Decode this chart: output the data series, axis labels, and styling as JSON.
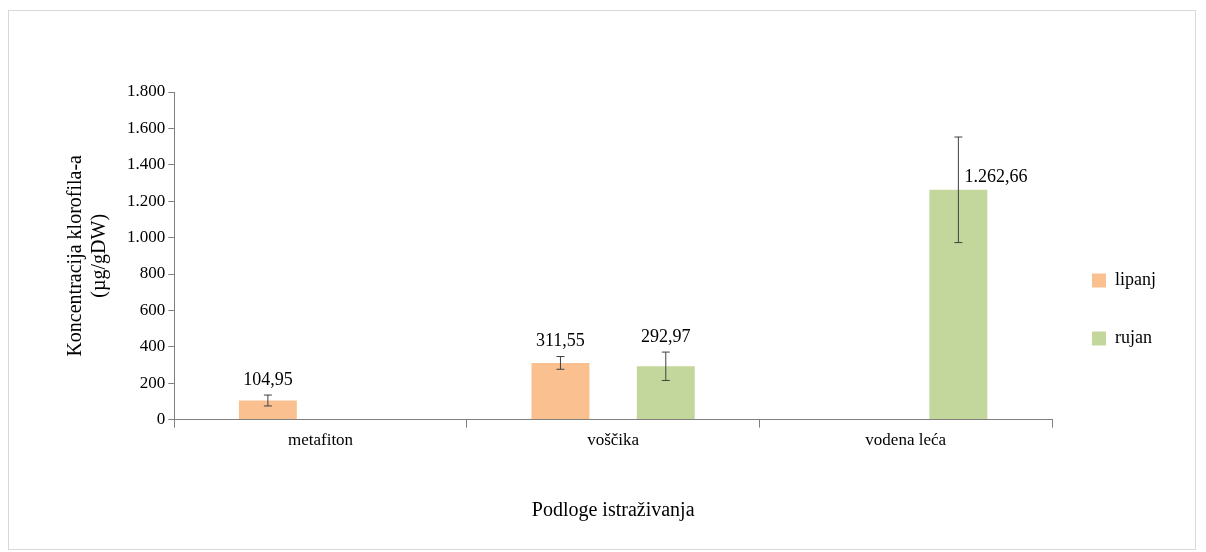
{
  "chart_data": {
    "type": "bar",
    "xlabel": "Podloge istraživanja",
    "ylabel": "Koncentracija klorofila-a (µg/gDW)",
    "categories": [
      "metafiton",
      "voščika",
      "vodena leća"
    ],
    "series": [
      {
        "name": "lipanj",
        "color": "#fac090",
        "values": [
          104.95,
          311.55,
          null
        ],
        "errors": [
          30,
          35,
          null
        ],
        "value_labels": [
          "104,95",
          "311,55",
          null
        ]
      },
      {
        "name": "rujan",
        "color": "#c3d69b",
        "values": [
          null,
          292.97,
          1262.66
        ],
        "errors": [
          null,
          78,
          290
        ],
        "value_labels": [
          null,
          "292,97",
          "1.262,66"
        ]
      }
    ],
    "ylim": [
      0,
      1800
    ],
    "yticks": [
      0,
      200,
      400,
      600,
      800,
      {
        "value": 1000,
        "label": "1.000"
      },
      {
        "value": 1200,
        "label": "1.200"
      },
      {
        "value": 1400,
        "label": "1.400"
      },
      {
        "value": 1600,
        "label": "1.600"
      },
      {
        "value": 1800,
        "label": "1.800"
      }
    ],
    "legend": "right"
  }
}
